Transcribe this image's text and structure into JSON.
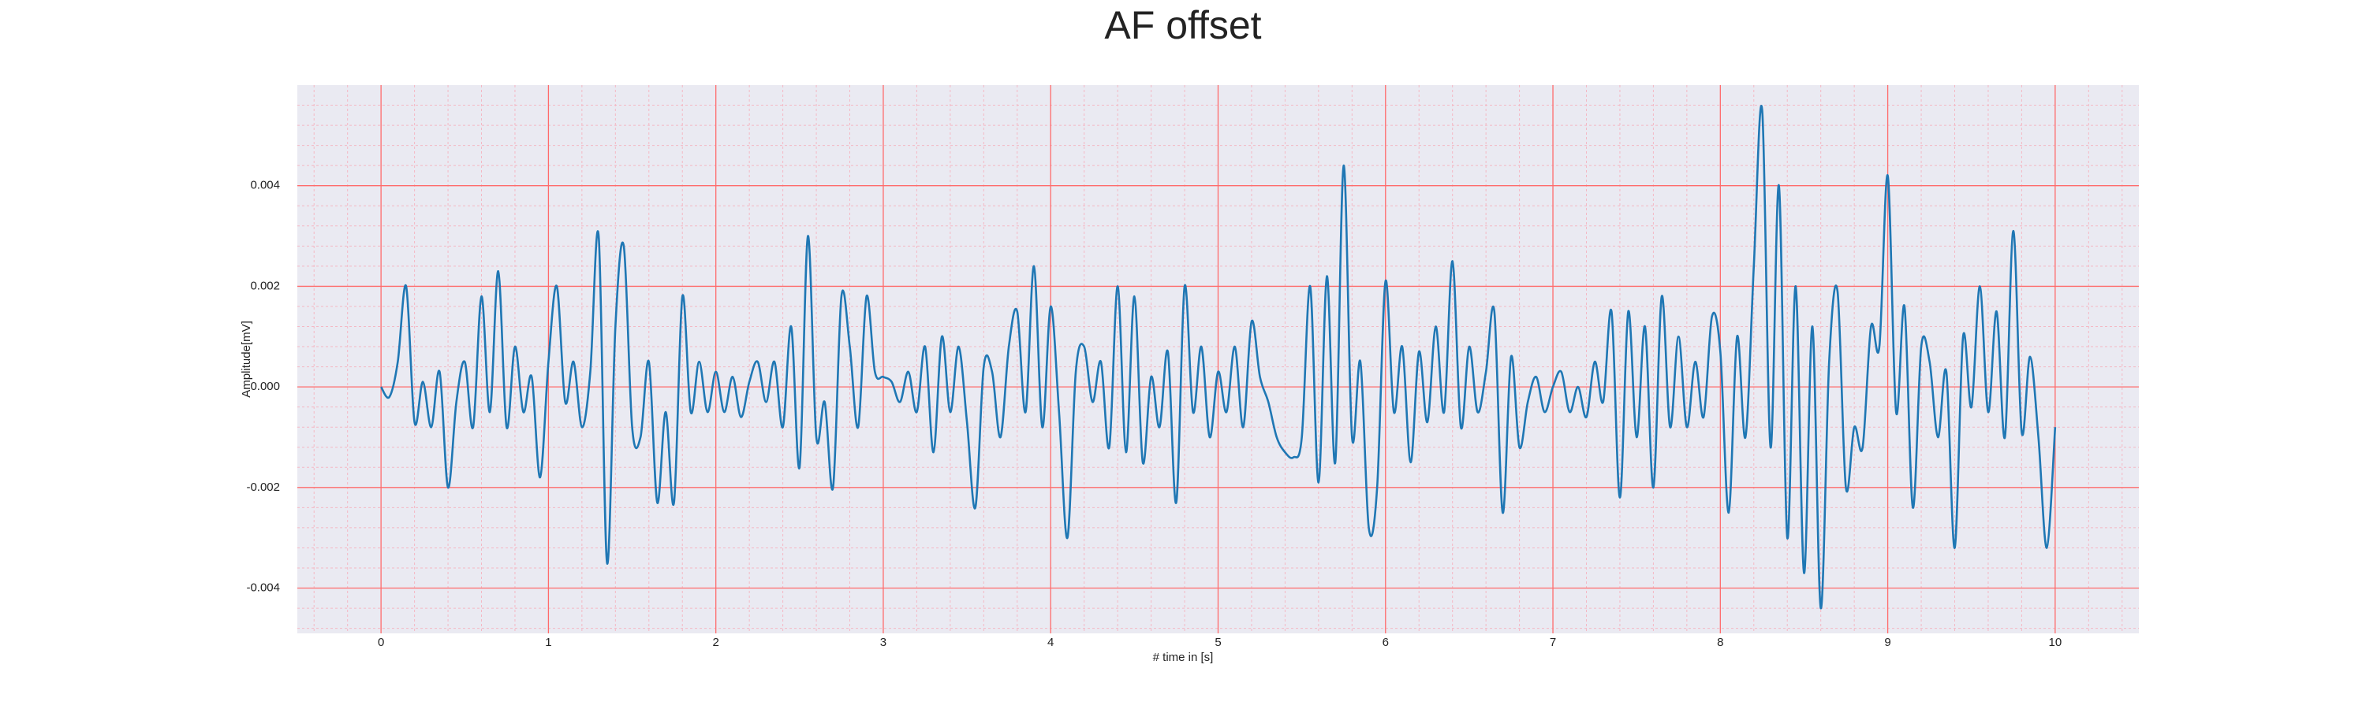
{
  "chart_data": {
    "type": "line",
    "title": "AF offset",
    "xlabel": "# time in [s]",
    "ylabel": "Amplitude[mV]",
    "x": [
      0,
      0.05,
      0.1,
      0.15,
      0.2,
      0.25,
      0.3,
      0.35,
      0.4,
      0.45,
      0.5,
      0.55,
      0.6,
      0.65,
      0.7,
      0.75,
      0.8,
      0.85,
      0.9,
      0.95,
      1,
      1.05,
      1.1,
      1.15,
      1.2,
      1.25,
      1.3,
      1.35,
      1.4,
      1.45,
      1.5,
      1.55,
      1.6,
      1.65,
      1.7,
      1.75,
      1.8,
      1.85,
      1.9,
      1.95,
      2,
      2.05,
      2.1,
      2.15,
      2.2,
      2.25,
      2.3,
      2.35,
      2.4,
      2.45,
      2.5,
      2.55,
      2.6,
      2.65,
      2.7,
      2.75,
      2.8,
      2.85,
      2.9,
      2.95,
      3,
      3.05,
      3.1,
      3.15,
      3.2,
      3.25,
      3.3,
      3.35,
      3.4,
      3.45,
      3.5,
      3.55,
      3.6,
      3.65,
      3.7,
      3.75,
      3.8,
      3.85,
      3.9,
      3.95,
      4,
      4.05,
      4.1,
      4.15,
      4.2,
      4.25,
      4.3,
      4.35,
      4.4,
      4.45,
      4.5,
      4.55,
      4.6,
      4.65,
      4.7,
      4.75,
      4.8,
      4.85,
      4.9,
      4.95,
      5,
      5.05,
      5.1,
      5.15,
      5.2,
      5.25,
      5.3,
      5.35,
      5.4,
      5.45,
      5.5,
      5.55,
      5.6,
      5.65,
      5.7,
      5.75,
      5.8,
      5.85,
      5.9,
      5.95,
      6,
      6.05,
      6.1,
      6.15,
      6.2,
      6.25,
      6.3,
      6.35,
      6.4,
      6.45,
      6.5,
      6.55,
      6.6,
      6.65,
      6.7,
      6.75,
      6.8,
      6.85,
      6.9,
      6.95,
      7,
      7.05,
      7.1,
      7.15,
      7.2,
      7.25,
      7.3,
      7.35,
      7.4,
      7.45,
      7.5,
      7.55,
      7.6,
      7.65,
      7.7,
      7.75,
      7.8,
      7.85,
      7.9,
      7.95,
      8,
      8.05,
      8.1,
      8.15,
      8.2,
      8.25,
      8.3,
      8.35,
      8.4,
      8.45,
      8.5,
      8.55,
      8.6,
      8.65,
      8.7,
      8.75,
      8.8,
      8.85,
      8.9,
      8.95,
      9,
      9.05,
      9.1,
      9.15,
      9.2,
      9.25,
      9.3,
      9.35,
      9.4,
      9.45,
      9.5,
      9.55,
      9.6,
      9.65,
      9.7,
      9.75,
      9.8,
      9.85,
      9.9,
      9.95,
      10
    ],
    "series": [
      {
        "name": "AF offset",
        "color": "#1f77b4",
        "values": [
          0,
          -0.0002,
          0.0005,
          0.002,
          -0.0007,
          0.0001,
          -0.0008,
          0.0003,
          -0.002,
          -0.0003,
          0.0005,
          -0.0008,
          0.0018,
          -0.0005,
          0.0023,
          -0.0008,
          0.0008,
          -0.0005,
          0.0002,
          -0.0018,
          0.0005,
          0.002,
          -0.0003,
          0.0005,
          -0.0008,
          0.0003,
          0.003,
          -0.0035,
          0.0012,
          0.0028,
          -0.0008,
          -0.001,
          0.0005,
          -0.0023,
          -0.0005,
          -0.0023,
          0.0018,
          -0.0005,
          0.0005,
          -0.0005,
          0.0003,
          -0.0005,
          0.0002,
          -0.0006,
          0.0001,
          0.0005,
          -0.0003,
          0.0005,
          -0.0008,
          0.0012,
          -0.0016,
          0.003,
          -0.001,
          -0.0003,
          -0.002,
          0.0018,
          0.0008,
          -0.0008,
          0.0018,
          0.0003,
          0.0002,
          0.0001,
          -0.0003,
          0.0003,
          -0.0005,
          0.0008,
          -0.0013,
          0.001,
          -0.0005,
          0.0008,
          -0.0007,
          -0.0024,
          0.0004,
          0.0003,
          -0.001,
          0.0008,
          0.0015,
          -0.0005,
          0.0024,
          -0.0008,
          0.0016,
          -0.0005,
          -0.003,
          0.0003,
          0.0008,
          -0.0003,
          0.0005,
          -0.0012,
          0.002,
          -0.0013,
          0.0018,
          -0.0015,
          0.0002,
          -0.0008,
          0.0007,
          -0.0023,
          0.002,
          -0.0005,
          0.0008,
          -0.001,
          0.0003,
          -0.0005,
          0.0008,
          -0.0008,
          0.0013,
          0.0002,
          -0.0003,
          -0.001,
          -0.0013,
          -0.0014,
          -0.001,
          0.002,
          -0.0019,
          0.0022,
          -0.0015,
          0.0044,
          -0.001,
          0.0005,
          -0.0028,
          -0.002,
          0.0021,
          -0.0005,
          0.0008,
          -0.0015,
          0.0007,
          -0.0007,
          0.0012,
          -0.0005,
          0.0025,
          -0.0008,
          0.0008,
          -0.0005,
          0.0003,
          0.0015,
          -0.0025,
          0.0006,
          -0.0012,
          -0.0003,
          0.0002,
          -0.0005,
          0,
          0.0003,
          -0.0005,
          0,
          -0.0006,
          0.0005,
          -0.0003,
          0.0015,
          -0.0022,
          0.0015,
          -0.001,
          0.0012,
          -0.002,
          0.0018,
          -0.0008,
          0.001,
          -0.0008,
          0.0005,
          -0.0006,
          0.0014,
          0.0007,
          -0.0025,
          0.001,
          -0.001,
          0.0024,
          0.0055,
          -0.0012,
          0.004,
          -0.003,
          0.002,
          -0.0037,
          0.0012,
          -0.0044,
          0.0005,
          0.0019,
          -0.002,
          -0.0008,
          -0.0012,
          0.0012,
          0.0008,
          0.0042,
          -0.0005,
          0.0016,
          -0.0024,
          0.0008,
          0.0005,
          -0.001,
          0.0003,
          -0.0032,
          0.001,
          -0.0004,
          0.002,
          -0.0005,
          0.0015,
          -0.001,
          0.0031,
          -0.0009,
          0.0006,
          -0.001,
          -0.0032,
          -0.0008
        ]
      }
    ],
    "xlim": [
      -0.5,
      10.5
    ],
    "ylim": [
      -0.0049,
      0.006
    ],
    "xticks": [
      0,
      1,
      2,
      3,
      4,
      5,
      6,
      7,
      8,
      9,
      10
    ],
    "yticks": [
      -0.004,
      -0.002,
      {
        "value": 0,
        "label": "0.000"
      },
      0.002,
      0.004
    ],
    "xminorticks": [
      -0.4,
      -0.2,
      0.2,
      0.4,
      0.6,
      0.8,
      1.2,
      1.4,
      1.6,
      1.8,
      2.2,
      2.4,
      2.6,
      2.8,
      3.2,
      3.4,
      3.6,
      3.8,
      4.2,
      4.4,
      4.6,
      4.8,
      5.2,
      5.4,
      5.6,
      5.8,
      6.2,
      6.4,
      6.6,
      6.8,
      7.2,
      7.4,
      7.6,
      7.8,
      8.2,
      8.4,
      8.6,
      8.8,
      9.2,
      9.4,
      9.6,
      9.8,
      10.2,
      10.4
    ],
    "yminorticks": [
      -0.0048,
      -0.0044,
      -0.0036,
      -0.0032,
      -0.0028,
      -0.0024,
      -0.0016,
      -0.0012,
      -0.0008,
      -0.0004,
      0.0004,
      0.0008,
      0.0012,
      0.0016,
      0.0024,
      0.0028,
      0.0032,
      0.0036,
      0.0044,
      0.0048,
      0.0052,
      0.0056
    ],
    "grid": true,
    "minor_grid": true,
    "grid_color": "#ff6b6b",
    "minor_grid_color": "#f4b8c4",
    "background": "#eaeaf2"
  }
}
